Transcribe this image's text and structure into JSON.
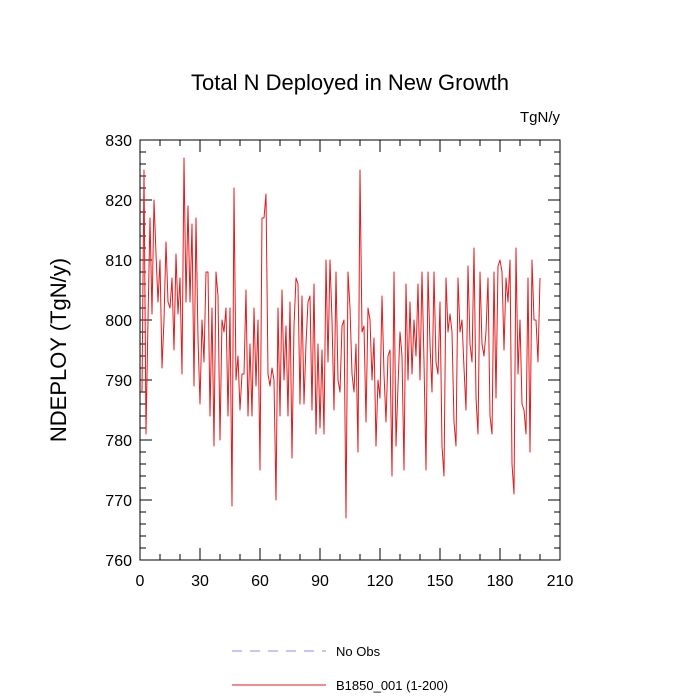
{
  "chart_data": {
    "type": "line",
    "title": "Total N Deployed in New Growth",
    "units": "TgN/y",
    "ylabel": "NDEPLOY  (TgN/y)",
    "xlabel": "",
    "xlim": [
      0,
      210
    ],
    "ylim": [
      760,
      830
    ],
    "xticks": [
      0,
      30,
      60,
      90,
      120,
      150,
      180,
      210
    ],
    "yticks": [
      760,
      770,
      780,
      790,
      800,
      810,
      820,
      830
    ],
    "grid": false,
    "series": [
      {
        "name": "B1850_001 (1-200)",
        "color": "#e41a1c",
        "x_start": 1,
        "values": [
          788,
          825,
          781,
          800,
          817,
          801,
          820,
          811,
          803,
          810,
          792,
          800,
          813,
          803,
          802,
          807,
          795,
          811,
          801,
          807,
          791,
          827,
          803,
          819,
          803,
          816,
          789,
          817,
          797,
          786,
          800,
          793,
          808,
          808,
          784,
          802,
          779,
          808,
          804,
          780,
          800,
          798,
          802,
          784,
          802,
          769,
          822,
          790,
          794,
          785,
          791,
          791,
          805,
          784,
          796,
          784,
          802,
          789,
          800,
          775,
          817,
          817,
          821,
          791,
          789,
          792,
          790,
          770,
          802,
          784,
          805,
          790,
          799,
          784,
          803,
          777,
          799,
          807,
          806,
          786,
          804,
          786,
          796,
          803,
          804,
          785,
          806,
          781,
          796,
          782,
          795,
          781,
          810,
          793,
          810,
          800,
          785,
          808,
          790,
          788,
          799,
          800,
          767,
          808,
          802,
          791,
          788,
          796,
          778,
          825,
          798,
          799,
          783,
          802,
          800,
          790,
          797,
          779,
          790,
          787,
          804,
          791,
          783,
          794,
          795,
          774,
          808,
          779,
          789,
          798,
          794,
          775,
          806,
          790,
          803,
          791,
          800,
          794,
          806,
          790,
          808,
          793,
          775,
          808,
          796,
          788,
          808,
          793,
          791,
          803,
          779,
          774,
          807,
          798,
          801,
          798,
          783,
          779,
          807,
          798,
          800,
          792,
          785,
          809,
          796,
          793,
          812,
          787,
          781,
          808,
          796,
          794,
          798,
          807,
          784,
          781,
          808,
          787,
          809,
          810,
          808,
          795,
          807,
          803,
          810,
          776,
          771,
          812,
          791,
          800,
          786,
          785,
          781,
          807,
          778,
          810,
          800,
          800,
          793,
          807
        ]
      }
    ],
    "legend": [
      {
        "label": "No Obs",
        "color": "#8c8cf0",
        "style": "dashed"
      },
      {
        "label": "B1850_001 (1-200)",
        "color": "#e41a1c",
        "style": "solid"
      }
    ],
    "legend_position": "bottom-center"
  }
}
